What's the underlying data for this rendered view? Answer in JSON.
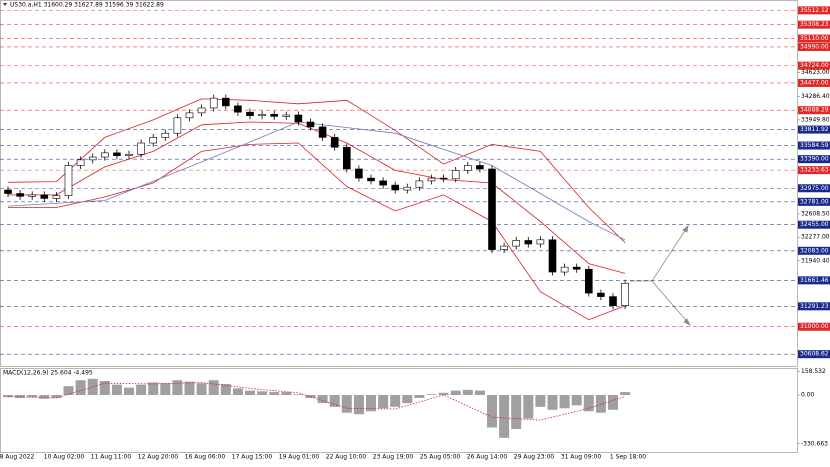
{
  "chart_data": {
    "type": "candlestick",
    "title": "US30.a,H1  31600.29 31627.89 31596.39 31622.89",
    "ylim": [
      30440,
      35660
    ],
    "yticks": [
      {
        "value": 34623,
        "label": "34623.00"
      },
      {
        "value": 34286.4,
        "label": "34286.40"
      },
      {
        "value": 33949.8,
        "label": "33949.80"
      },
      {
        "value": 32608.5,
        "label": "32608.50"
      },
      {
        "value": 32277,
        "label": "32277.00"
      },
      {
        "value": 31940.4,
        "label": "31940.40"
      }
    ],
    "levels": [
      {
        "value": 35512.12,
        "label": "35512.12",
        "color": "#e02828"
      },
      {
        "value": 35308.23,
        "label": "35308.23",
        "color": "#e02828"
      },
      {
        "value": 35110,
        "label": "35110.00",
        "color": "#e02828"
      },
      {
        "value": 34990,
        "label": "34990.00",
        "color": "#e02828"
      },
      {
        "value": 34724,
        "label": "34724.00",
        "color": "#e02828"
      },
      {
        "value": 34477,
        "label": "34477.00",
        "color": "#e02828"
      },
      {
        "value": 34088.29,
        "label": "34088.29",
        "color": "#e02828"
      },
      {
        "value": 33811.92,
        "label": "33811.92",
        "color": "#1a2a8c"
      },
      {
        "value": 33584.59,
        "label": "33584.59",
        "color": "#1a2a8c"
      },
      {
        "value": 33390,
        "label": "33390.00",
        "color": "#1a2a8c"
      },
      {
        "value": 33233.63,
        "label": "33233.63",
        "color": "#e02828"
      },
      {
        "value": 32975,
        "label": "32975.00",
        "color": "#1a2a8c"
      },
      {
        "value": 32781,
        "label": "32781.00",
        "color": "#1a2a8c"
      },
      {
        "value": 32455,
        "label": "32455.00",
        "color": "#1a2a8c"
      },
      {
        "value": 32083,
        "label": "32083.00",
        "color": "#1a2a8c"
      },
      {
        "value": 31661.46,
        "label": "31661.46",
        "color": "#1a2a8c"
      },
      {
        "value": 31291.23,
        "label": "31291.23",
        "color": "#1a2a8c"
      },
      {
        "value": 31000,
        "label": "31000.00",
        "color": "#e02828"
      },
      {
        "value": 30608.62,
        "label": "30608.62",
        "color": "#1a2a8c"
      }
    ],
    "x_labels": [
      "8 Aug 2022",
      "10 Aug 02:00",
      "11 Aug 11:00",
      "12 Aug 20:00",
      "16 Aug 06:00",
      "17 Aug 15:00",
      "19 Aug 01:00",
      "22 Aug 10:00",
      "23 Aug 19:00",
      "25 Aug 05:00",
      "26 Aug 14:00",
      "29 Aug 23:00",
      "31 Aug 09:00",
      "1 Sep 18:00"
    ],
    "bull_color": "#ffffff",
    "bear_color": "#000000",
    "candles": {
      "open": [
        32950,
        32900,
        32860,
        32880,
        32830,
        32870,
        33300,
        33380,
        33420,
        33480,
        33440,
        33460,
        33620,
        33700,
        33760,
        33980,
        34050,
        34120,
        34260,
        34150,
        34060,
        34010,
        34030,
        34000,
        34020,
        33920,
        33850,
        33700,
        33560,
        33250,
        33120,
        33080,
        33020,
        32950,
        32990,
        33080,
        33120,
        33110,
        33230,
        33300,
        33250,
        32100,
        32150,
        32230,
        32180,
        32240,
        31780,
        31850,
        31820,
        31480,
        31430,
        31300
      ],
      "high": [
        33000,
        32950,
        32930,
        32930,
        32920,
        33350,
        33430,
        33470,
        33530,
        33530,
        33510,
        33670,
        33750,
        33810,
        34030,
        34100,
        34170,
        34310,
        34310,
        34200,
        34110,
        34080,
        34080,
        34070,
        34070,
        33970,
        33900,
        33750,
        33610,
        33300,
        33170,
        33130,
        33070,
        33040,
        33130,
        33170,
        33170,
        33280,
        33350,
        33350,
        33300,
        32200,
        32280,
        32280,
        32290,
        32290,
        31900,
        31900,
        31870,
        31530,
        31480,
        31670
      ],
      "low": [
        32850,
        32810,
        32810,
        32780,
        32780,
        32820,
        33250,
        33330,
        33370,
        33390,
        33390,
        33410,
        33570,
        33650,
        33710,
        33930,
        34000,
        34070,
        34100,
        34010,
        33960,
        33960,
        33950,
        33950,
        33870,
        33800,
        33650,
        33510,
        33200,
        33070,
        33030,
        32970,
        32900,
        32900,
        32940,
        33030,
        33060,
        33060,
        33180,
        33200,
        32050,
        32050,
        32100,
        32130,
        32130,
        31730,
        31730,
        31770,
        31430,
        31380,
        31250,
        31250
      ],
      "close": [
        32900,
        32860,
        32880,
        32830,
        32870,
        33300,
        33380,
        33420,
        33480,
        33440,
        33460,
        33620,
        33700,
        33760,
        33980,
        34050,
        34120,
        34260,
        34150,
        34060,
        34010,
        34030,
        34000,
        34020,
        33920,
        33850,
        33700,
        33560,
        33250,
        33120,
        33080,
        33020,
        32950,
        32990,
        33080,
        33120,
        33110,
        33230,
        33300,
        33250,
        32100,
        32150,
        32230,
        32180,
        32240,
        31780,
        31850,
        31820,
        31480,
        31430,
        31300,
        31620
      ]
    },
    "overlays": [
      {
        "color": "#d62020",
        "x": [
          0,
          4,
          8,
          12,
          16,
          20,
          24,
          28,
          32,
          36,
          40,
          44,
          48,
          51
        ],
        "values": [
          33060,
          33070,
          33700,
          33950,
          34250,
          34230,
          34180,
          34230,
          33800,
          33320,
          33600,
          33500,
          32700,
          32200
        ]
      },
      {
        "color": "#d62020",
        "x": [
          0,
          4,
          8,
          12,
          16,
          20,
          24,
          28,
          32,
          36,
          40,
          44,
          48,
          51
        ],
        "values": [
          32880,
          32880,
          33280,
          33500,
          33880,
          33920,
          33900,
          33620,
          33230,
          33100,
          33050,
          32500,
          31900,
          31760
        ]
      },
      {
        "color": "#d62020",
        "x": [
          0,
          4,
          8,
          12,
          16,
          20,
          24,
          28,
          32,
          36,
          40,
          44,
          48,
          51
        ],
        "values": [
          32700,
          32700,
          32850,
          33050,
          33500,
          33600,
          33620,
          33000,
          32650,
          32880,
          32500,
          31500,
          31100,
          31300
        ]
      },
      {
        "color": "#7a7ab8",
        "x": [
          0,
          8,
          16,
          24,
          32,
          40,
          48,
          51
        ],
        "values": [
          32720,
          32800,
          33350,
          33920,
          33760,
          33300,
          32500,
          32240
        ]
      }
    ],
    "macd": {
      "label": "MACD(12,26,9) 25.604 -4.495",
      "ylim": [
        -386,
        183
      ],
      "yticks": [
        158.532,
        {
          "value": 0,
          "label": "0.00"
        },
        -330.663
      ],
      "histogram_color": "#a0a0a0",
      "histogram": [
        -15,
        -20,
        -15,
        -25,
        -20,
        60,
        100,
        110,
        95,
        70,
        50,
        70,
        85,
        80,
        100,
        90,
        80,
        100,
        75,
        45,
        30,
        25,
        20,
        20,
        5,
        -20,
        -55,
        -80,
        -120,
        -130,
        -110,
        -90,
        -80,
        -55,
        -20,
        5,
        15,
        30,
        35,
        30,
        -220,
        -290,
        -230,
        -160,
        -80,
        -100,
        -90,
        -70,
        -110,
        -120,
        -100,
        20
      ],
      "signal": {
        "color": "#d62020",
        "x": [
          0,
          4,
          8,
          12,
          16,
          20,
          24,
          28,
          32,
          36,
          40,
          44,
          48,
          51
        ],
        "values": [
          -10,
          -20,
          80,
          75,
          85,
          45,
          15,
          -90,
          -95,
          0,
          -150,
          -170,
          -90,
          -10
        ]
      }
    }
  }
}
